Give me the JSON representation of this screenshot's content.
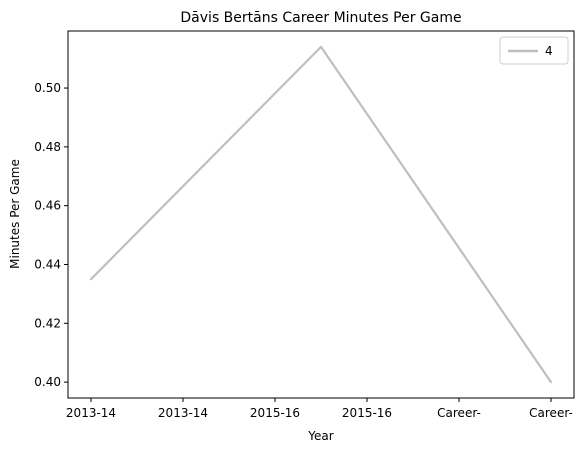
{
  "chart_data": {
    "type": "line",
    "title": "Dāvis Bertāns Career Minutes Per Game",
    "xlabel": "Year",
    "ylabel": "Minutes Per Game",
    "x_tick_labels": [
      "2013-14",
      "2013-14",
      "2015-16",
      "2015-16",
      "Career-",
      "Career-"
    ],
    "y_ticks": [
      "0.40",
      "0.42",
      "0.44",
      "0.46",
      "0.48",
      "0.50"
    ],
    "ylim": [
      0.3946,
      0.5194
    ],
    "xlim": [
      -0.25,
      5.25
    ],
    "grid": false,
    "legend_position": "top-right",
    "series": [
      {
        "name": "4",
        "color": "#bfbfbf",
        "points": [
          {
            "x": 0,
            "y": 0.435
          },
          {
            "x": 2.5,
            "y": 0.514
          },
          {
            "x": 5,
            "y": 0.4
          }
        ]
      }
    ]
  }
}
